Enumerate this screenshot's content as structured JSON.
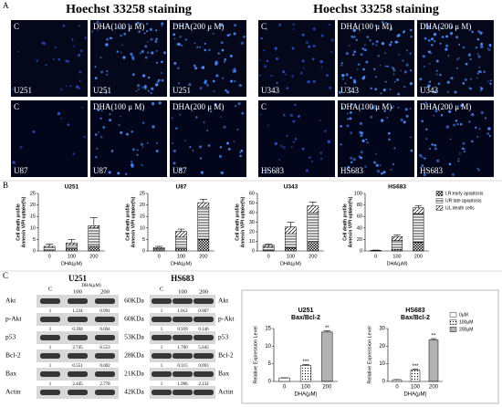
{
  "panel_a": {
    "label": "A",
    "groups": [
      {
        "title": "Hoechst 33258 staining",
        "columns": [
          "C",
          "DHA(100 μ M)",
          "DHA(200 μ M)"
        ],
        "cell_lines": [
          "U251",
          "U87"
        ]
      },
      {
        "title": "Hoechst 33258 staining",
        "columns": [
          "C",
          "DHA(100 μ M)",
          "DHA(200 μ M)"
        ],
        "cell_lines": [
          "U343",
          "HS683"
        ]
      }
    ]
  },
  "panel_b_label": "B",
  "panel_c_label": "C",
  "chart_data": [
    {
      "type": "bar",
      "stacked": true,
      "title": "U251",
      "x_label": "DHA(μM)",
      "y_label": [
        "Cell death profile",
        "Annexin V/PI uptake(%)"
      ],
      "categories": [
        "0",
        "100",
        "200"
      ],
      "series": [
        {
          "name": "LR:early apoptosis",
          "pattern": "checker",
          "values": [
            0.5,
            1,
            2
          ]
        },
        {
          "name": "UR:late apoptosis",
          "pattern": "hlines",
          "values": [
            1,
            1.5,
            8
          ]
        },
        {
          "name": "UL:death cells",
          "pattern": "diag",
          "values": [
            0.5,
            1,
            1
          ]
        }
      ],
      "errors": [
        1,
        1.5,
        3.5
      ],
      "ylim": [
        0,
        25
      ],
      "yticks": [
        0,
        5,
        10,
        15,
        20,
        25
      ]
    },
    {
      "type": "bar",
      "stacked": true,
      "title": "U87",
      "x_label": "DHA(μM)",
      "y_label": [
        "Cell death profile",
        "Annexin V/PI uptake(%)"
      ],
      "categories": [
        "0",
        "100",
        "200"
      ],
      "series": [
        {
          "name": "LR:early apoptosis",
          "pattern": "checker",
          "values": [
            0.5,
            1,
            5
          ]
        },
        {
          "name": "UR:late apoptosis",
          "pattern": "hlines",
          "values": [
            0.5,
            5,
            14
          ]
        },
        {
          "name": "UL:death cells",
          "pattern": "diag",
          "values": [
            0.5,
            2.5,
            2
          ]
        }
      ],
      "errors": [
        0.5,
        1,
        1.5
      ],
      "ylim": [
        0,
        25
      ],
      "yticks": [
        0,
        5,
        10,
        15,
        20,
        25
      ]
    },
    {
      "type": "bar",
      "stacked": true,
      "title": "U343",
      "x_label": "DHA(μM)",
      "y_label": [
        "Cell death profile",
        "Annexin V/PI uptake(%)"
      ],
      "categories": [
        "0",
        "100",
        "200"
      ],
      "series": [
        {
          "name": "LR:early apoptosis",
          "pattern": "checker",
          "values": [
            1,
            3,
            10
          ]
        },
        {
          "name": "UR:late apoptosis",
          "pattern": "hlines",
          "values": [
            3,
            15,
            30
          ]
        },
        {
          "name": "UL:death cells",
          "pattern": "diag",
          "values": [
            2,
            7,
            7
          ]
        }
      ],
      "errors": [
        1,
        5,
        4
      ],
      "ylim": [
        0,
        60
      ],
      "yticks": [
        0,
        10,
        20,
        30,
        40,
        50,
        60
      ]
    },
    {
      "type": "bar",
      "stacked": true,
      "title": "HS683",
      "x_label": "DHA(μM)",
      "y_label": [
        "Cell death profile",
        "Annexin V/PI uptake(%)"
      ],
      "categories": [
        "0",
        "100",
        "200"
      ],
      "series": [
        {
          "name": "LR:early apoptosis",
          "pattern": "checker",
          "values": [
            0.3,
            3,
            15
          ]
        },
        {
          "name": "UR:late apoptosis",
          "pattern": "hlines",
          "values": [
            0.4,
            15,
            50
          ]
        },
        {
          "name": "UL:death cells",
          "pattern": "diag",
          "values": [
            0.3,
            7,
            10
          ]
        }
      ],
      "errors": [
        0.5,
        3,
        4
      ],
      "ylim": [
        0,
        100
      ],
      "yticks": [
        0,
        20,
        40,
        60,
        80,
        100
      ],
      "legend": "right"
    },
    {
      "type": "bar",
      "title": "U251",
      "subtitle": "Bax/Bcl-2",
      "x_label": "DHA(μM)",
      "y_label": "Relative Expression Level",
      "categories": [
        "0",
        "100",
        "200"
      ],
      "values": [
        1,
        4.5,
        14
      ],
      "errors": [
        0.05,
        0.3,
        0.4
      ],
      "patterns": [
        "none",
        "dots",
        "lines"
      ],
      "annotations": [
        null,
        "***",
        "**"
      ],
      "ylim": [
        0,
        15
      ],
      "yticks": [
        0,
        5,
        10,
        15
      ]
    },
    {
      "type": "bar",
      "title": "HS683",
      "subtitle": "Bax/Bcl-2",
      "x_label": "DHA(μM)",
      "y_label": "Relative Expression Level",
      "categories": [
        "0",
        "100",
        "200"
      ],
      "values": [
        1,
        6.5,
        23.5
      ],
      "errors": [
        0.05,
        0.4,
        0.8
      ],
      "patterns": [
        "none",
        "dots",
        "lines"
      ],
      "annotations": [
        null,
        "***",
        "**"
      ],
      "legend_labels": [
        "0μM",
        "100μM",
        "200μM"
      ],
      "legend": "right",
      "ylim": [
        0,
        30
      ],
      "yticks": [
        0,
        10,
        20,
        30
      ]
    }
  ],
  "blots": {
    "control": "C",
    "lanes_label": "DHA(μM)",
    "doses": [
      "100",
      "200"
    ],
    "markers": [
      "Akt",
      "p-Akt",
      "p53",
      "Bcl-2",
      "Bax",
      "Actin"
    ],
    "sizes": [
      "60KDa",
      "60KDa",
      "53KDa",
      "28KDa",
      "21KDa",
      "42KDa"
    ],
    "groups": [
      {
        "title": "U251",
        "ratios": [
          [
            "1",
            "1.234",
            "0.991"
          ],
          [
            "1",
            "0.394",
            "0.094"
          ],
          [
            "1",
            "2.745",
            "6.553"
          ],
          [
            "1",
            "0.551",
            "0.002"
          ],
          [
            "1",
            "2.445",
            "2.778"
          ]
        ]
      },
      {
        "title": "HS683",
        "ratios": [
          [
            "1",
            "1.012",
            "0.967"
          ],
          [
            "1",
            "0.939",
            "0.146"
          ],
          [
            "1",
            "1.700",
            "5.645"
          ],
          [
            "1",
            "0.315",
            "0.093"
          ],
          [
            "1",
            "1.996",
            "2.132"
          ]
        ]
      }
    ]
  }
}
